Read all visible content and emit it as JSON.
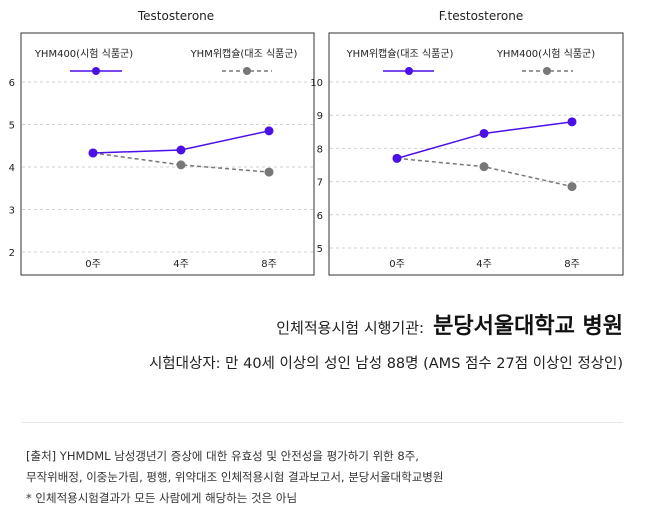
{
  "chart_data": [
    {
      "type": "line",
      "title": "Testosterone",
      "categories": [
        "0주",
        "4주",
        "8주"
      ],
      "ylim": [
        2,
        6
      ],
      "yticks": [
        2,
        3,
        4,
        5,
        6
      ],
      "grid": true,
      "legend_position": "top",
      "series": [
        {
          "name": "YHM400(시험 식품군)",
          "values": [
            4.33,
            4.4,
            4.85
          ],
          "color": "#4B0FE8",
          "style": "solid"
        },
        {
          "name": "YHM위캡슐(대조 식품군)",
          "values": [
            4.33,
            4.05,
            3.88
          ],
          "color": "#777777",
          "style": "dashed"
        }
      ]
    },
    {
      "type": "line",
      "title": "F.testosterone",
      "categories": [
        "0주",
        "4주",
        "8주"
      ],
      "ylim": [
        5,
        10
      ],
      "yticks": [
        5,
        6,
        7,
        8,
        9,
        10
      ],
      "grid": true,
      "legend_position": "top",
      "series": [
        {
          "name": "YHM위캡슐(대조 식품군)",
          "values": [
            7.7,
            8.45,
            8.8
          ],
          "color": "#4B0FE8",
          "style": "solid"
        },
        {
          "name": "YHM400(시험 식품군)",
          "values": [
            7.7,
            7.45,
            6.85
          ],
          "color": "#777777",
          "style": "dashed"
        }
      ]
    }
  ],
  "institution": {
    "label": "인체적용시험 시행기관:",
    "name": "분당서울대학교 병원"
  },
  "subjects": "시험대상자: 만 40세 이상의 성인 남성 88명 (AMS 점수 27점 이상인 정상인)",
  "footnotes": [
    "[출처] YHMDML 남성갱년기 증상에 대한 유효성 및 안전성을 평가하기 위한 8주,",
    "무작위배정, 이중눈가림, 평행, 위약대조 인체적용시험 결과보고서, 분당서울대학교병원",
    "* 인체적용시험결과가 모든 사람에게 해당하는 것은 아님"
  ]
}
